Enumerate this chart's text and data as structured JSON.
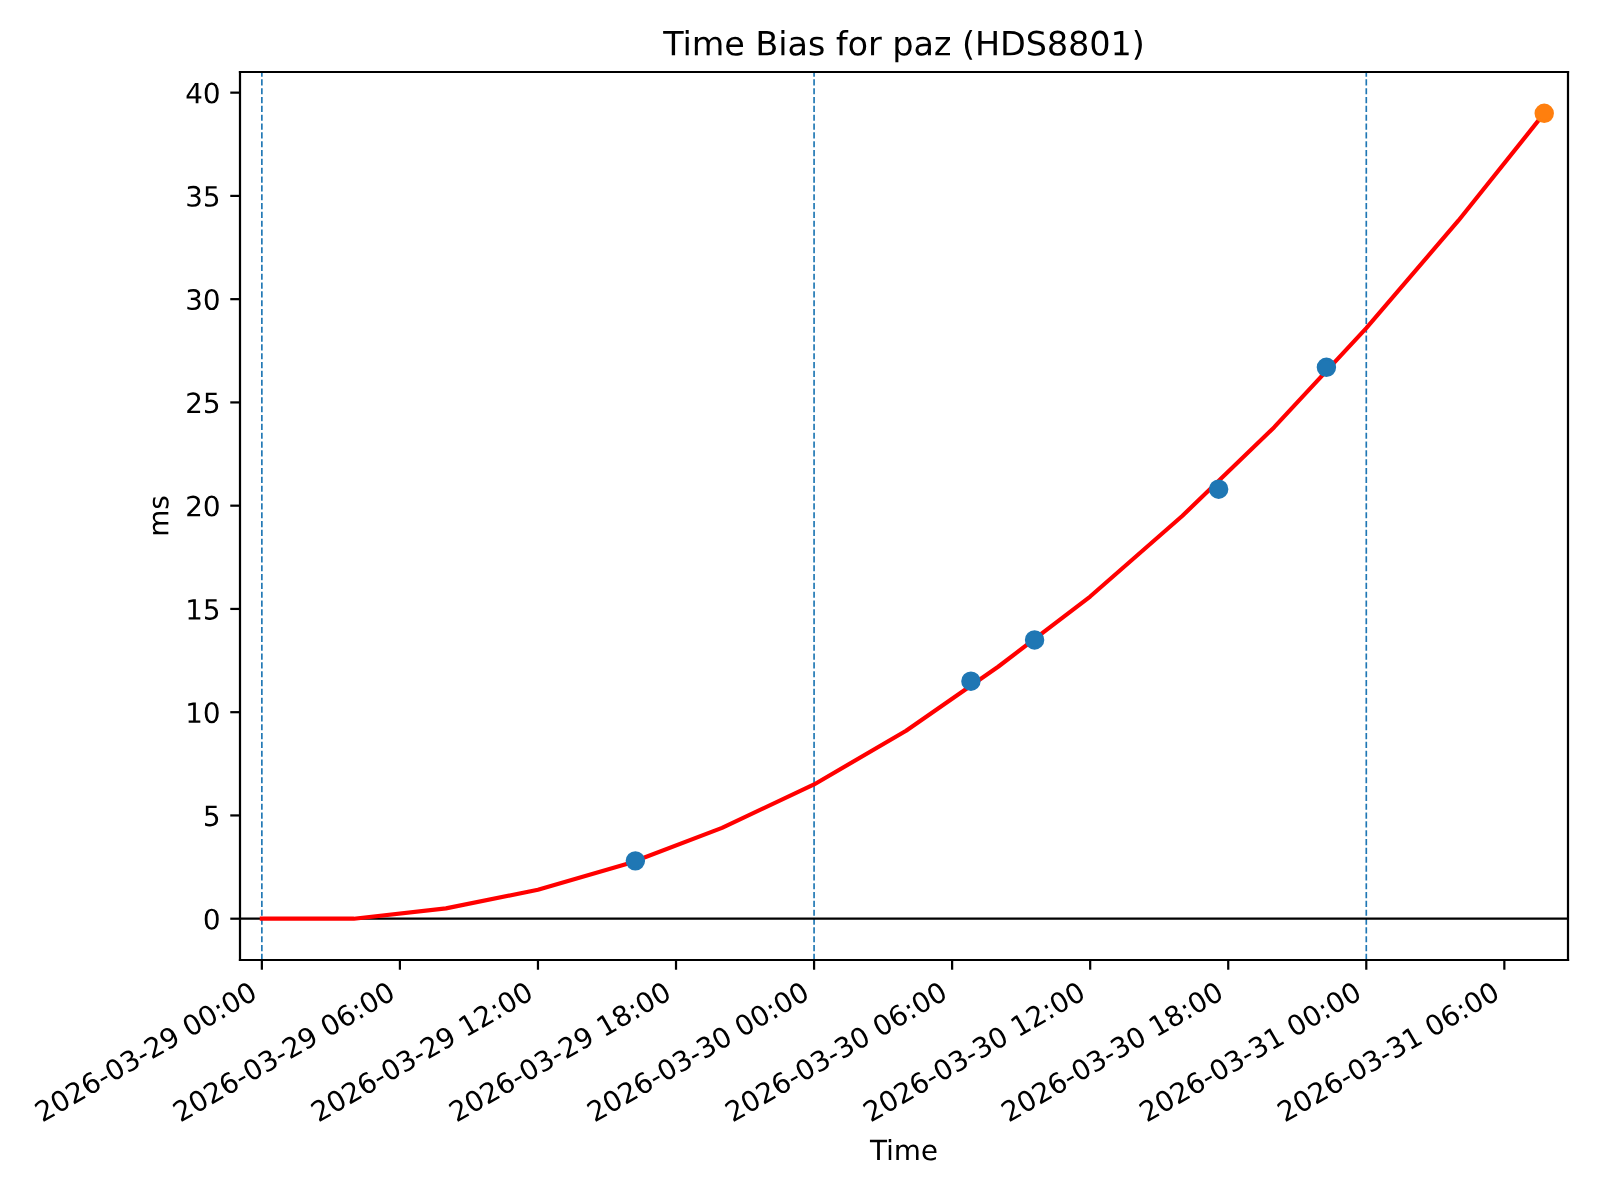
{
  "chart_data": {
    "type": "scatter",
    "title": "Time Bias for paz (HDS8801)",
    "xlabel": "Time",
    "ylabel": "ms",
    "xlim": [
      "2026-03-28T23:03",
      "2026-03-31T08:46"
    ],
    "ylim": [
      -2,
      41
    ],
    "xticks": [
      {
        "value": "2026-03-29T00:00",
        "label": "2026-03-29 00:00"
      },
      {
        "value": "2026-03-29T06:00",
        "label": "2026-03-29 06:00"
      },
      {
        "value": "2026-03-29T12:00",
        "label": "2026-03-29 12:00"
      },
      {
        "value": "2026-03-29T18:00",
        "label": "2026-03-29 18:00"
      },
      {
        "value": "2026-03-30T00:00",
        "label": "2026-03-30 00:00"
      },
      {
        "value": "2026-03-30T06:00",
        "label": "2026-03-30 06:00"
      },
      {
        "value": "2026-03-30T12:00",
        "label": "2026-03-30 12:00"
      },
      {
        "value": "2026-03-30T18:00",
        "label": "2026-03-30 18:00"
      },
      {
        "value": "2026-03-31T00:00",
        "label": "2026-03-31 00:00"
      },
      {
        "value": "2026-03-31T06:00",
        "label": "2026-03-31 06:00"
      }
    ],
    "yticks": [
      0,
      5,
      10,
      15,
      20,
      25,
      30,
      35,
      40
    ],
    "grid": false,
    "legend": false,
    "series": [
      {
        "type": "line",
        "color": "#ff0000",
        "marker": "none",
        "line_style": "solid",
        "x": [
          "2026-03-29T00:00",
          "2026-03-29T04:00",
          "2026-03-29T08:00",
          "2026-03-29T12:00",
          "2026-03-29T16:00",
          "2026-03-29T20:00",
          "2026-03-30T00:00",
          "2026-03-30T04:00",
          "2026-03-30T08:00",
          "2026-03-30T12:00",
          "2026-03-30T16:00",
          "2026-03-30T20:00",
          "2026-03-31T00:00",
          "2026-03-31T04:00",
          "2026-03-31T07:44"
        ],
        "values": [
          0.0,
          0.0,
          0.5,
          1.4,
          2.7,
          4.4,
          6.5,
          9.1,
          12.2,
          15.6,
          19.5,
          23.8,
          28.6,
          33.8,
          39.0
        ]
      },
      {
        "color": "#1f77b4",
        "marker": "circle",
        "x": [
          "2026-03-29T16:14",
          "2026-03-30T06:49",
          "2026-03-30T09:35",
          "2026-03-30T17:35",
          "2026-03-30T22:16"
        ],
        "values": [
          2.8,
          11.5,
          13.5,
          20.8,
          26.7
        ]
      },
      {
        "color": "#ff7f0e",
        "marker": "circle",
        "x": [
          "2026-03-31T07:44"
        ],
        "values": [
          39.0
        ]
      }
    ],
    "ref_lines": [
      {
        "axis": "x",
        "value": "2026-03-29T00:00",
        "color": "#1f77b4",
        "line_style": "dashed"
      },
      {
        "axis": "x",
        "value": "2026-03-30T00:00",
        "color": "#1f77b4",
        "line_style": "dashed"
      },
      {
        "axis": "x",
        "value": "2026-03-31T00:00",
        "color": "#1f77b4",
        "line_style": "dashed"
      },
      {
        "axis": "y",
        "value": 0,
        "color": "#000000",
        "line_style": "solid"
      }
    ]
  }
}
